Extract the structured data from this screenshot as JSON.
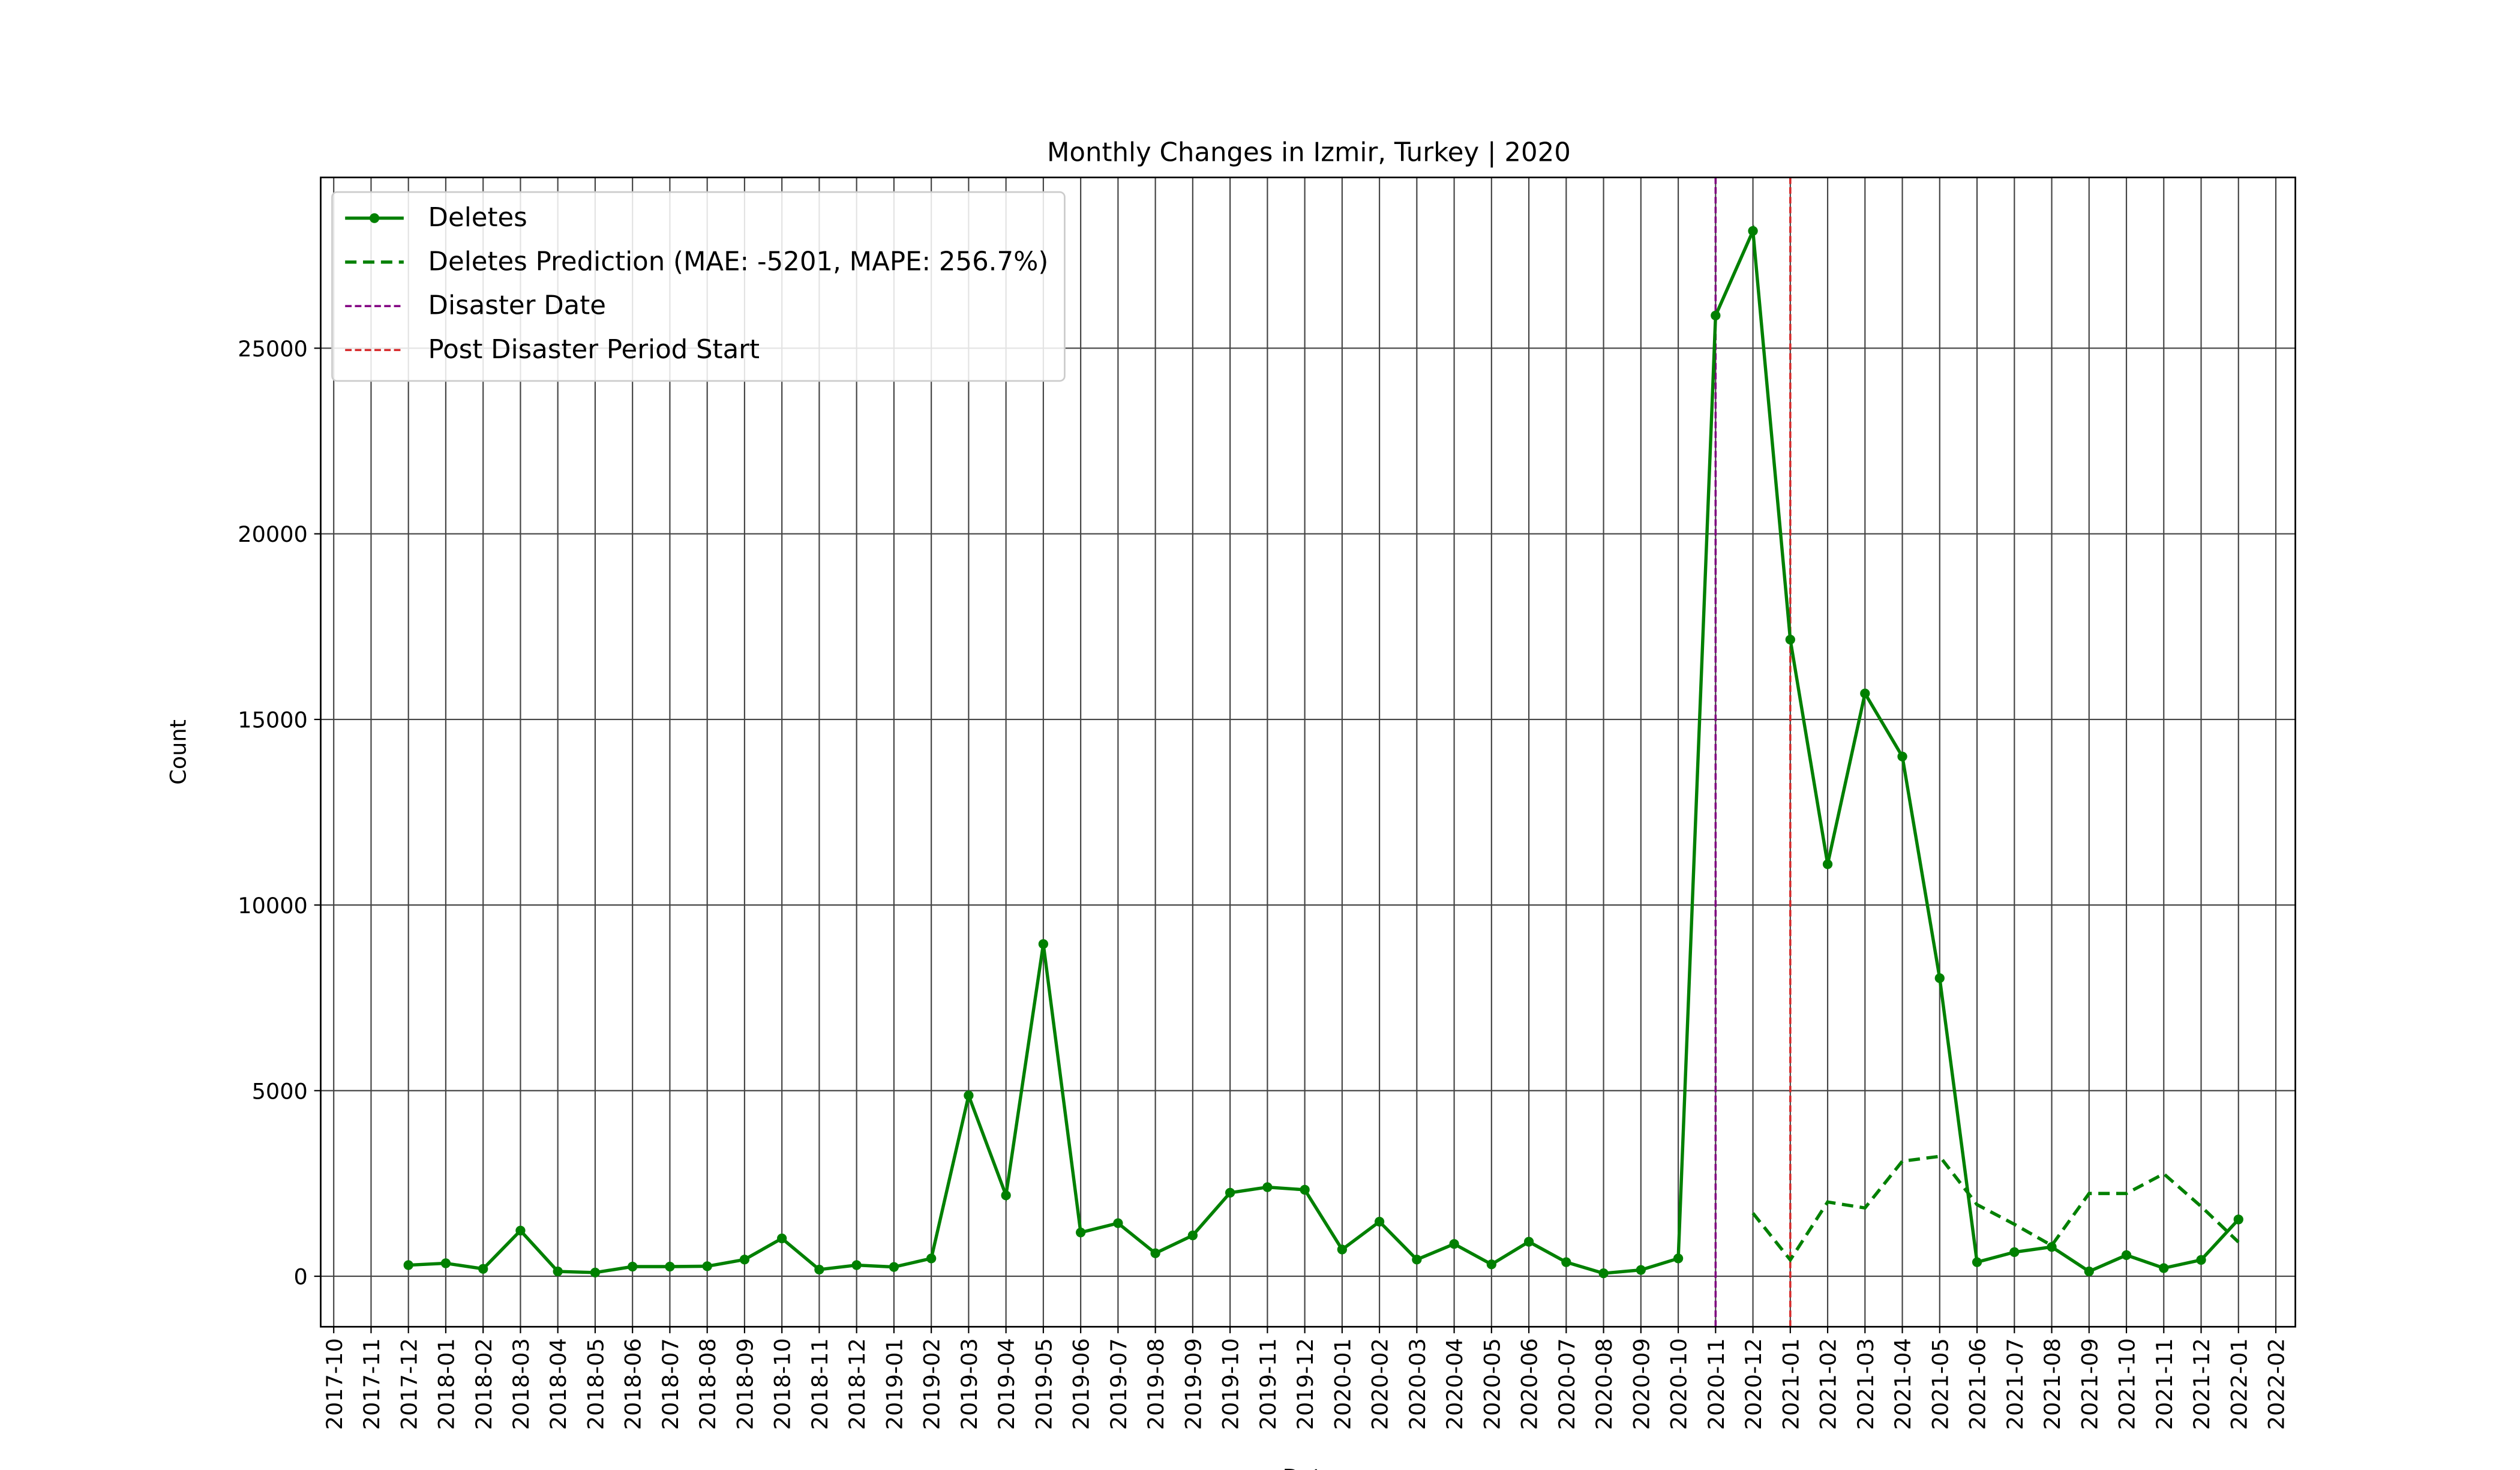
{
  "chart_data": {
    "type": "line",
    "title": "Monthly Changes in Izmir, Turkey | 2020",
    "xlabel": "Date",
    "ylabel": "Count",
    "x": [
      "2017-12",
      "2018-01",
      "2018-02",
      "2018-03",
      "2018-04",
      "2018-05",
      "2018-06",
      "2018-07",
      "2018-08",
      "2018-09",
      "2018-10",
      "2018-11",
      "2018-12",
      "2019-01",
      "2019-02",
      "2019-03",
      "2019-04",
      "2019-05",
      "2019-06",
      "2019-07",
      "2019-08",
      "2019-09",
      "2019-10",
      "2019-11",
      "2019-12",
      "2020-01",
      "2020-02",
      "2020-03",
      "2020-04",
      "2020-05",
      "2020-06",
      "2020-07",
      "2020-08",
      "2020-09",
      "2020-10",
      "2020-11",
      "2020-12",
      "2021-01",
      "2021-02",
      "2021-03",
      "2021-04",
      "2021-05",
      "2021-06",
      "2021-07",
      "2021-08",
      "2021-09",
      "2021-10",
      "2021-11",
      "2021-12",
      "2022-01"
    ],
    "series": [
      {
        "name": "Deletes",
        "color": "#008000",
        "style": "solid",
        "markers": true,
        "values": [
          300,
          350,
          200,
          1230,
          130,
          100,
          260,
          260,
          270,
          450,
          1020,
          180,
          300,
          250,
          480,
          4870,
          2180,
          8950,
          1180,
          1430,
          620,
          1100,
          2250,
          2400,
          2330,
          720,
          1470,
          450,
          870,
          320,
          930,
          380,
          80,
          170,
          480,
          25880,
          28160,
          17150,
          11100,
          15700,
          14000,
          8030,
          380,
          650,
          790,
          130,
          570,
          220,
          440,
          1530
        ]
      },
      {
        "name": "Deletes Prediction (MAE: -5201, MAPE: 256.7%)",
        "color": "#008000",
        "style": "dashed",
        "markers": false,
        "values": [
          null,
          null,
          null,
          null,
          null,
          null,
          null,
          null,
          null,
          null,
          null,
          null,
          null,
          null,
          null,
          null,
          null,
          null,
          null,
          null,
          null,
          null,
          null,
          null,
          null,
          null,
          null,
          null,
          null,
          null,
          null,
          null,
          null,
          null,
          null,
          null,
          1700,
          440,
          2000,
          1840,
          3100,
          3230,
          1930,
          1400,
          830,
          2230,
          2230,
          2760,
          1880,
          920
        ]
      }
    ],
    "vlines": [
      {
        "name": "Disaster Date",
        "x": "2020-11",
        "color": "#800080"
      },
      {
        "name": "Post Disaster Period Start",
        "x": "2021-01",
        "color": "#d62728"
      }
    ],
    "xlim": [
      "2017-10",
      "2022-02"
    ],
    "xticks": [
      "2017-10",
      "2017-11",
      "2017-12",
      "2018-01",
      "2018-02",
      "2018-03",
      "2018-04",
      "2018-05",
      "2018-06",
      "2018-07",
      "2018-08",
      "2018-09",
      "2018-10",
      "2018-11",
      "2018-12",
      "2019-01",
      "2019-02",
      "2019-03",
      "2019-04",
      "2019-05",
      "2019-06",
      "2019-07",
      "2019-08",
      "2019-09",
      "2019-10",
      "2019-11",
      "2019-12",
      "2020-01",
      "2020-02",
      "2020-03",
      "2020-04",
      "2020-05",
      "2020-06",
      "2020-07",
      "2020-08",
      "2020-09",
      "2020-10",
      "2020-11",
      "2020-12",
      "2021-01",
      "2021-02",
      "2021-03",
      "2021-04",
      "2021-05",
      "2021-06",
      "2021-07",
      "2021-08",
      "2021-09",
      "2021-10",
      "2021-11",
      "2021-12",
      "2022-01",
      "2022-02"
    ],
    "ylim": [
      -1360,
      29600
    ],
    "yticks": [
      0,
      5000,
      10000,
      15000,
      20000,
      25000
    ],
    "grid": true,
    "legend": "upper left"
  }
}
